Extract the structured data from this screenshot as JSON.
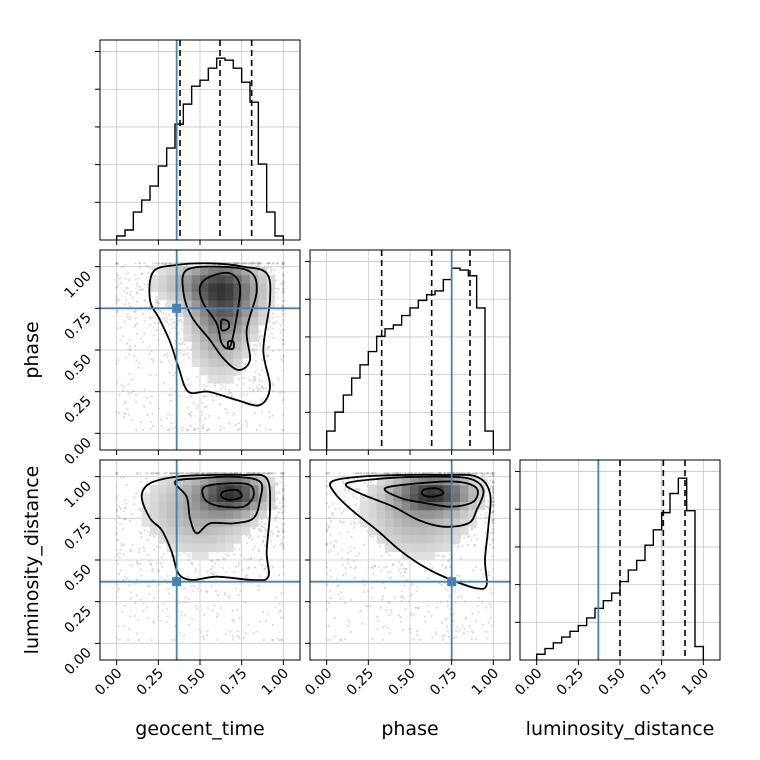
{
  "chart_data": {
    "type": "corner",
    "parameters": [
      "geocent_time",
      "phase",
      "luminosity_distance"
    ],
    "axis_range": [
      -0.1,
      1.1
    ],
    "ticks": [
      0.0,
      0.25,
      0.5,
      0.75,
      1.0
    ],
    "tick_labels": [
      "0.00",
      "0.25",
      "0.50",
      "0.75",
      "1.00"
    ],
    "grid": true,
    "colors": {
      "truth": "#4682b4",
      "hist": "#000000",
      "contour": "#000000",
      "points": "#9a9a9a"
    },
    "truths": {
      "geocent_time": 0.36,
      "phase": 0.75,
      "luminosity_distance": 0.37
    },
    "quantiles": {
      "geocent_time": [
        0.38,
        0.62,
        0.81
      ],
      "phase": [
        0.33,
        0.63,
        0.86
      ],
      "luminosity_distance": [
        0.5,
        0.76,
        0.89
      ]
    },
    "histograms": {
      "geocent_time": {
        "edges": [
          0.0,
          0.05,
          0.1,
          0.15,
          0.2,
          0.25,
          0.3,
          0.35,
          0.4,
          0.45,
          0.5,
          0.55,
          0.6,
          0.65,
          0.7,
          0.75,
          0.8,
          0.85,
          0.9,
          0.95,
          1.0
        ],
        "counts": [
          0.02,
          0.05,
          0.14,
          0.2,
          0.27,
          0.37,
          0.46,
          0.58,
          0.68,
          0.77,
          0.8,
          0.86,
          0.91,
          0.9,
          0.86,
          0.79,
          0.69,
          0.38,
          0.14,
          0.02
        ]
      },
      "phase": {
        "edges": [
          0.0,
          0.05,
          0.1,
          0.15,
          0.2,
          0.25,
          0.3,
          0.35,
          0.4,
          0.45,
          0.5,
          0.55,
          0.6,
          0.65,
          0.7,
          0.75,
          0.8,
          0.85,
          0.9,
          0.95,
          1.0
        ],
        "counts": [
          0.1,
          0.2,
          0.29,
          0.38,
          0.45,
          0.52,
          0.6,
          0.64,
          0.66,
          0.71,
          0.75,
          0.79,
          0.82,
          0.84,
          0.9,
          0.96,
          0.95,
          0.92,
          0.75,
          0.1
        ]
      },
      "luminosity_distance": {
        "edges": [
          0.0,
          0.05,
          0.1,
          0.15,
          0.2,
          0.25,
          0.3,
          0.35,
          0.4,
          0.45,
          0.5,
          0.55,
          0.6,
          0.65,
          0.7,
          0.75,
          0.8,
          0.85,
          0.9,
          0.95,
          1.0
        ],
        "counts": [
          0.03,
          0.06,
          0.09,
          0.12,
          0.15,
          0.18,
          0.22,
          0.27,
          0.31,
          0.35,
          0.41,
          0.47,
          0.52,
          0.6,
          0.68,
          0.77,
          0.87,
          0.95,
          0.78,
          0.07
        ]
      }
    },
    "panels_2d": [
      {
        "x": "geocent_time",
        "y": "phase",
        "density_peaks": [
          {
            "x": 0.66,
            "y": 0.84,
            "sx": 0.15,
            "sy": 0.15,
            "w": 1.0
          },
          {
            "x": 0.62,
            "y": 0.62,
            "sx": 0.12,
            "sy": 0.2,
            "w": 0.7
          },
          {
            "x": 0.5,
            "y": 0.9,
            "sx": 0.2,
            "sy": 0.08,
            "w": 0.6
          }
        ],
        "contours": [
          [
            [
              0.22,
              0.97
            ],
            [
              0.36,
              1.01
            ],
            [
              0.56,
              1.02
            ],
            [
              0.76,
              1.0
            ],
            [
              0.9,
              0.96
            ],
            [
              0.92,
              0.8
            ],
            [
              0.88,
              0.5
            ],
            [
              0.92,
              0.28
            ],
            [
              0.86,
              0.17
            ],
            [
              0.72,
              0.2
            ],
            [
              0.55,
              0.25
            ],
            [
              0.43,
              0.25
            ],
            [
              0.37,
              0.4
            ],
            [
              0.32,
              0.55
            ],
            [
              0.26,
              0.68
            ],
            [
              0.2,
              0.8
            ]
          ],
          [
            [
              0.42,
              0.98
            ],
            [
              0.62,
              1.0
            ],
            [
              0.8,
              0.97
            ],
            [
              0.84,
              0.85
            ],
            [
              0.78,
              0.62
            ],
            [
              0.8,
              0.44
            ],
            [
              0.73,
              0.38
            ],
            [
              0.64,
              0.45
            ],
            [
              0.56,
              0.56
            ],
            [
              0.45,
              0.7
            ],
            [
              0.4,
              0.85
            ]
          ],
          [
            [
              0.56,
              0.94
            ],
            [
              0.68,
              0.96
            ],
            [
              0.74,
              0.88
            ],
            [
              0.72,
              0.7
            ],
            [
              0.68,
              0.52
            ],
            [
              0.63,
              0.54
            ],
            [
              0.6,
              0.66
            ],
            [
              0.52,
              0.78
            ],
            [
              0.5,
              0.88
            ]
          ],
          [
            [
              0.63,
              0.68
            ],
            [
              0.67,
              0.67
            ],
            [
              0.67,
              0.63
            ],
            [
              0.63,
              0.62
            ]
          ],
          [
            [
              0.67,
              0.55
            ],
            [
              0.7,
              0.55
            ],
            [
              0.7,
              0.51
            ],
            [
              0.67,
              0.51
            ]
          ]
        ]
      },
      {
        "x": "geocent_time",
        "y": "luminosity_distance",
        "density_peaks": [
          {
            "x": 0.7,
            "y": 0.9,
            "sx": 0.13,
            "sy": 0.08,
            "w": 1.0
          },
          {
            "x": 0.5,
            "y": 0.8,
            "sx": 0.22,
            "sy": 0.18,
            "w": 0.5
          }
        ],
        "contours": [
          [
            [
              0.2,
              0.96
            ],
            [
              0.36,
              1.0
            ],
            [
              0.56,
              1.01
            ],
            [
              0.76,
              1.01
            ],
            [
              0.9,
              0.99
            ],
            [
              0.92,
              0.8
            ],
            [
              0.9,
              0.55
            ],
            [
              0.91,
              0.4
            ],
            [
              0.82,
              0.38
            ],
            [
              0.6,
              0.4
            ],
            [
              0.45,
              0.38
            ],
            [
              0.37,
              0.42
            ],
            [
              0.33,
              0.55
            ],
            [
              0.27,
              0.68
            ],
            [
              0.2,
              0.75
            ],
            [
              0.15,
              0.88
            ]
          ],
          [
            [
              0.35,
              0.97
            ],
            [
              0.5,
              0.99
            ],
            [
              0.7,
              1.0
            ],
            [
              0.86,
              0.97
            ],
            [
              0.86,
              0.86
            ],
            [
              0.82,
              0.75
            ],
            [
              0.7,
              0.72
            ],
            [
              0.56,
              0.72
            ],
            [
              0.48,
              0.66
            ],
            [
              0.44,
              0.75
            ],
            [
              0.42,
              0.88
            ]
          ],
          [
            [
              0.53,
              0.94
            ],
            [
              0.68,
              0.96
            ],
            [
              0.8,
              0.95
            ],
            [
              0.82,
              0.88
            ],
            [
              0.76,
              0.82
            ],
            [
              0.64,
              0.82
            ],
            [
              0.56,
              0.84
            ],
            [
              0.52,
              0.88
            ]
          ],
          [
            [
              0.64,
              0.91
            ],
            [
              0.72,
              0.92
            ],
            [
              0.75,
              0.88
            ],
            [
              0.68,
              0.86
            ],
            [
              0.63,
              0.88
            ]
          ]
        ]
      },
      {
        "x": "phase",
        "y": "luminosity_distance",
        "density_peaks": [
          {
            "x": 0.65,
            "y": 0.9,
            "sx": 0.15,
            "sy": 0.07,
            "w": 1.0
          },
          {
            "x": 0.55,
            "y": 0.78,
            "sx": 0.22,
            "sy": 0.18,
            "w": 0.5
          }
        ],
        "contours": [
          [
            [
              0.03,
              0.97
            ],
            [
              0.2,
              1.0
            ],
            [
              0.45,
              1.01
            ],
            [
              0.7,
              1.01
            ],
            [
              0.9,
              1.0
            ],
            [
              0.98,
              0.9
            ],
            [
              0.97,
              0.7
            ],
            [
              0.95,
              0.5
            ],
            [
              0.96,
              0.35
            ],
            [
              0.9,
              0.33
            ],
            [
              0.75,
              0.38
            ],
            [
              0.6,
              0.45
            ],
            [
              0.45,
              0.55
            ],
            [
              0.3,
              0.68
            ],
            [
              0.15,
              0.8
            ],
            [
              0.05,
              0.9
            ]
          ],
          [
            [
              0.12,
              0.96
            ],
            [
              0.35,
              0.99
            ],
            [
              0.6,
              1.0
            ],
            [
              0.85,
              0.99
            ],
            [
              0.94,
              0.92
            ],
            [
              0.9,
              0.8
            ],
            [
              0.85,
              0.72
            ],
            [
              0.7,
              0.7
            ],
            [
              0.55,
              0.74
            ],
            [
              0.4,
              0.82
            ],
            [
              0.2,
              0.9
            ]
          ],
          [
            [
              0.35,
              0.93
            ],
            [
              0.55,
              0.96
            ],
            [
              0.78,
              0.97
            ],
            [
              0.9,
              0.93
            ],
            [
              0.88,
              0.85
            ],
            [
              0.75,
              0.82
            ],
            [
              0.6,
              0.84
            ],
            [
              0.45,
              0.87
            ]
          ],
          [
            [
              0.58,
              0.92
            ],
            [
              0.66,
              0.93
            ],
            [
              0.7,
              0.9
            ],
            [
              0.64,
              0.88
            ],
            [
              0.58,
              0.89
            ]
          ]
        ]
      }
    ],
    "title": "",
    "xlabel": "",
    "ylabel": ""
  }
}
